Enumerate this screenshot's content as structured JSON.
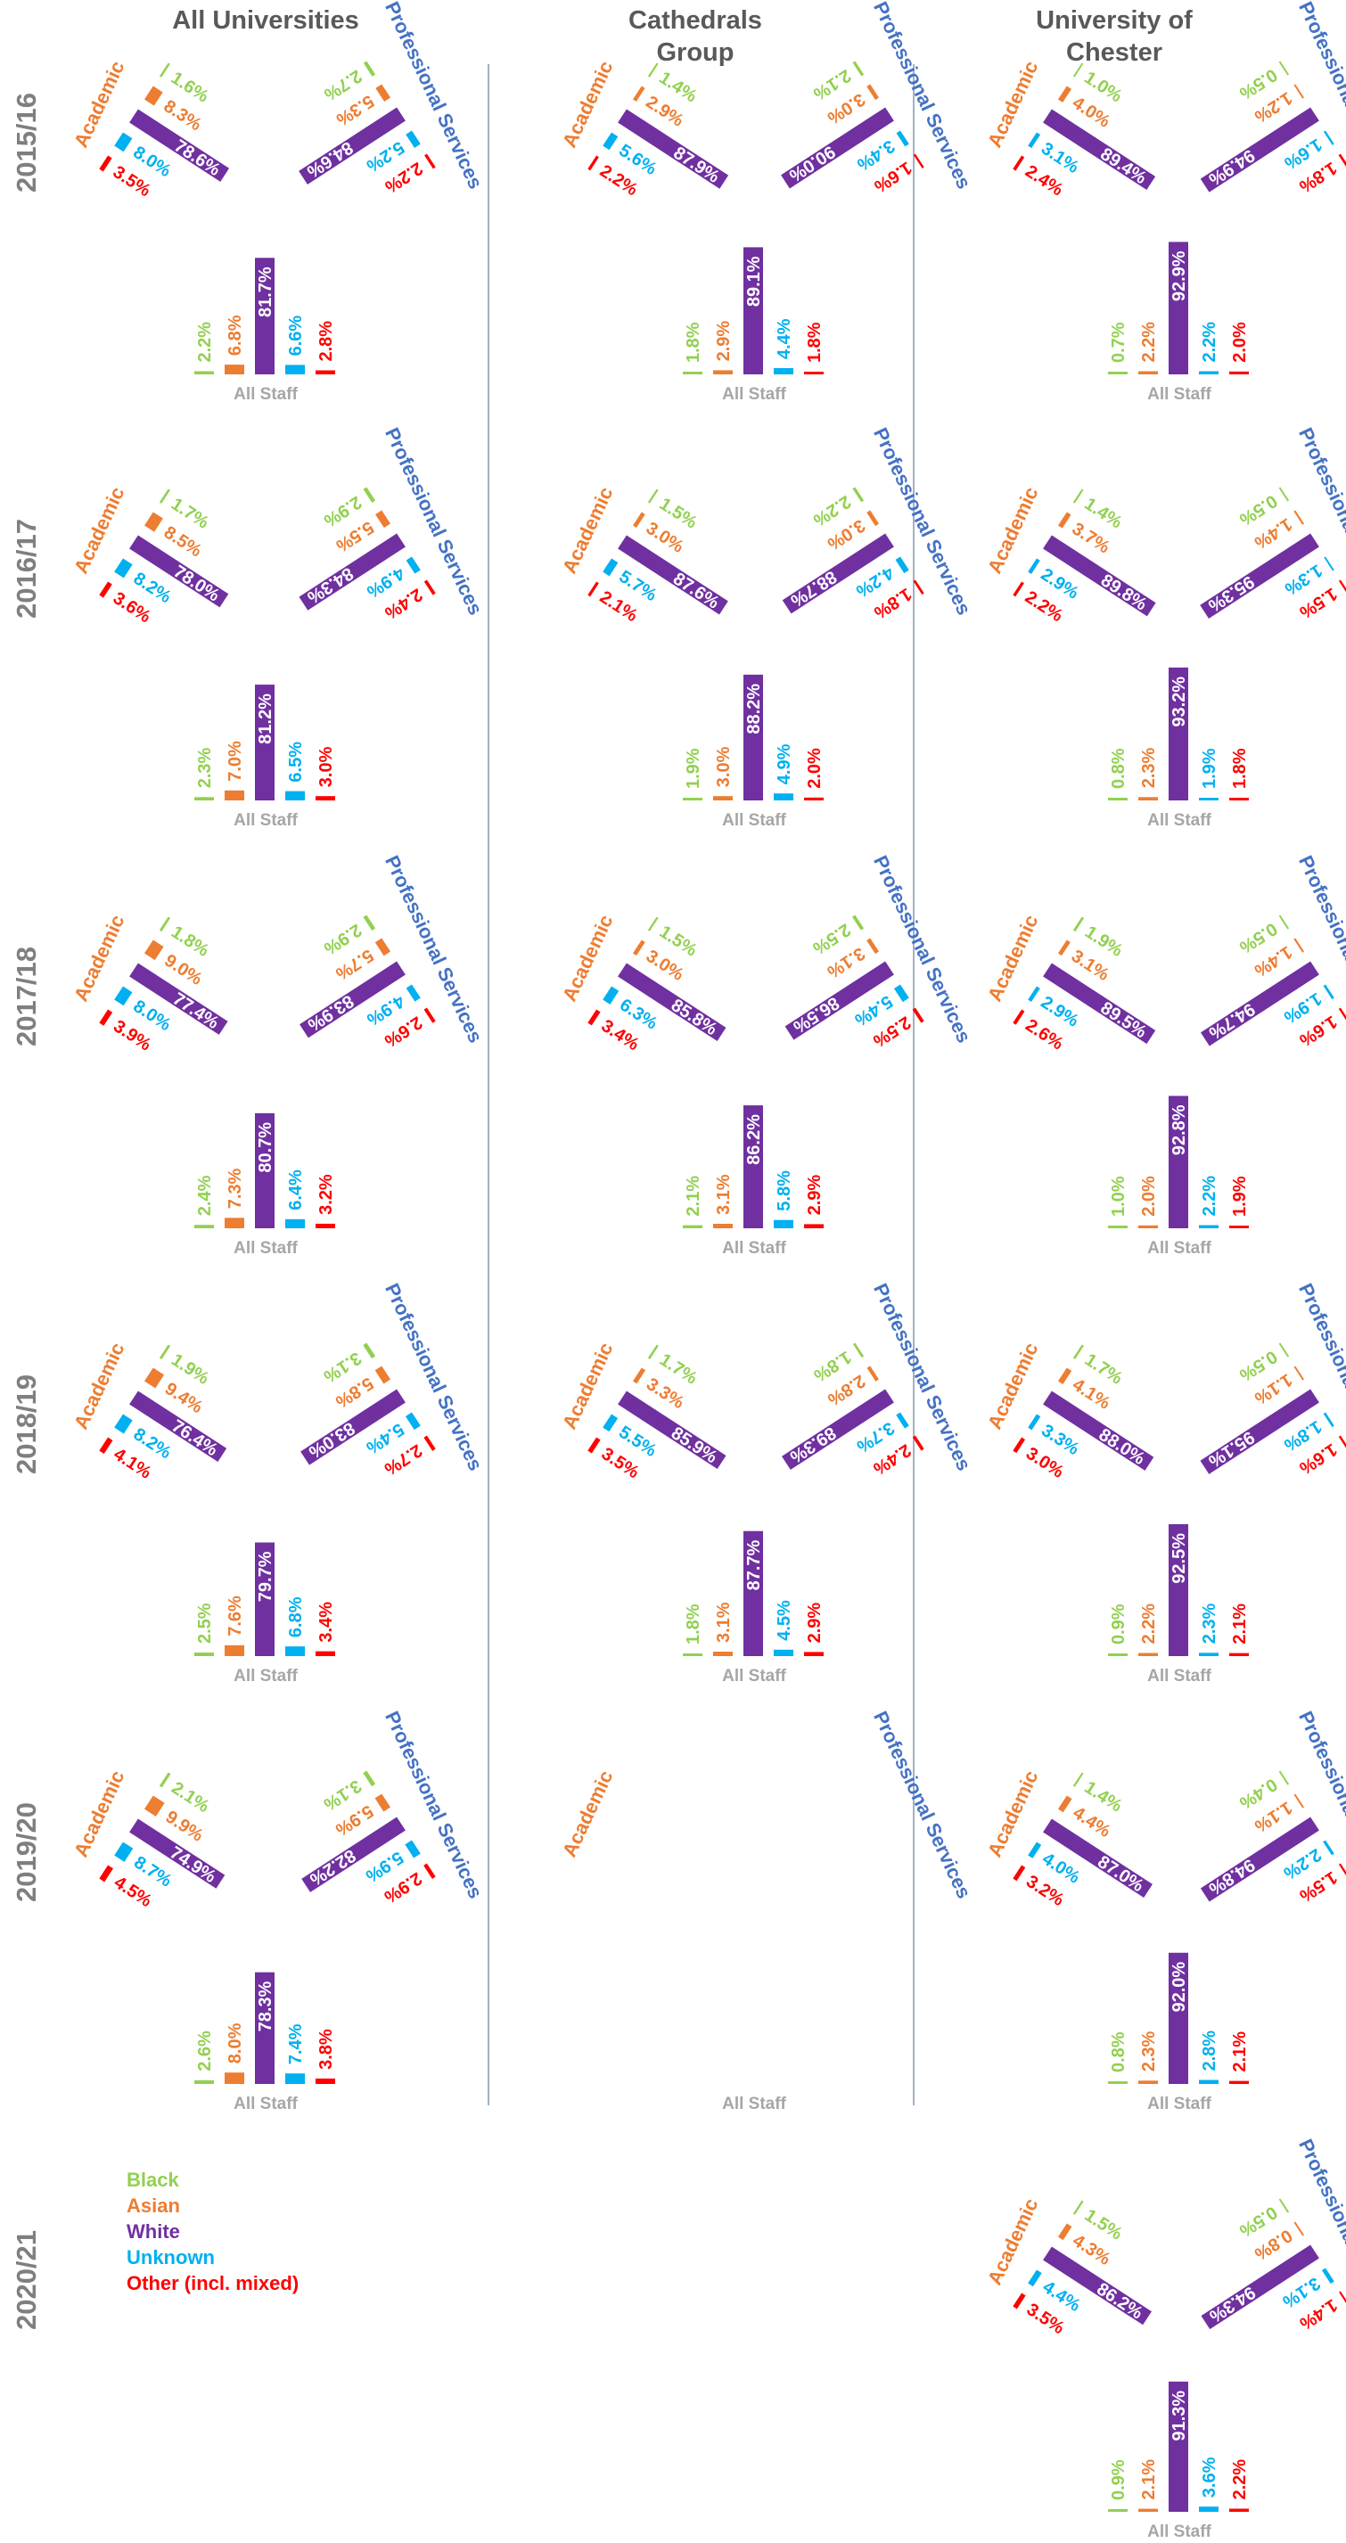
{
  "colors": {
    "Black": "#92d050",
    "Asian": "#ed7d31",
    "White": "#7030a0",
    "Unknown": "#00b0f0",
    "Other (incl. mixed)": "#ff0000",
    "label_academic": "#ed7d31",
    "label_prof": "#4472c4",
    "label_allstaff": "#a6a6a6",
    "divider": "#8497b0"
  },
  "chart_data": {
    "type": "bar",
    "columns": [
      "All Universities",
      "Cathedrals Group",
      "University of Chester"
    ],
    "column_titles": [
      [
        "All Universities"
      ],
      [
        "Cathedrals",
        "Group"
      ],
      [
        "University of",
        "Chester"
      ]
    ],
    "years": [
      "2015/16",
      "2016/17",
      "2017/18",
      "2018/19",
      "2019/20",
      "2020/21"
    ],
    "categories": [
      "Black",
      "Asian",
      "White",
      "Unknown",
      "Other (incl. mixed)"
    ],
    "group_labels": {
      "academic": "Academic",
      "prof": "Professional Services",
      "all": "All Staff"
    },
    "legend": [
      "Black",
      "Asian",
      "White",
      "Unknown",
      "Other (incl. mixed)"
    ],
    "data": {
      "All Universities": {
        "2015/16": {
          "academic": [
            1.6,
            8.3,
            78.6,
            8.0,
            3.5
          ],
          "prof": [
            2.7,
            5.3,
            84.6,
            5.2,
            2.2
          ],
          "all": [
            2.2,
            6.8,
            81.7,
            6.6,
            2.8
          ]
        },
        "2016/17": {
          "academic": [
            1.7,
            8.5,
            78.0,
            8.2,
            3.6
          ],
          "prof": [
            2.9,
            5.5,
            84.3,
            4.9,
            2.4
          ],
          "all": [
            2.3,
            7.0,
            81.2,
            6.5,
            3.0
          ]
        },
        "2017/18": {
          "academic": [
            1.8,
            9.0,
            77.4,
            8.0,
            3.9
          ],
          "prof": [
            2.9,
            5.7,
            83.9,
            4.9,
            2.6
          ],
          "all": [
            2.4,
            7.3,
            80.7,
            6.4,
            3.2
          ]
        },
        "2018/19": {
          "academic": [
            1.9,
            9.4,
            76.4,
            8.2,
            4.1
          ],
          "prof": [
            3.1,
            5.8,
            83.0,
            5.4,
            2.7
          ],
          "all": [
            2.5,
            7.6,
            79.7,
            6.8,
            3.4
          ]
        },
        "2019/20": {
          "academic": [
            2.1,
            9.9,
            74.9,
            8.7,
            4.5
          ],
          "prof": [
            3.1,
            5.9,
            82.2,
            5.9,
            2.9
          ],
          "all": [
            2.6,
            8.0,
            78.3,
            7.4,
            3.8
          ]
        }
      },
      "Cathedrals Group": {
        "2015/16": {
          "academic": [
            1.4,
            2.9,
            87.9,
            5.6,
            2.2
          ],
          "prof": [
            2.1,
            3.0,
            90.0,
            3.4,
            1.6
          ],
          "all": [
            1.8,
            2.9,
            89.1,
            4.4,
            1.8
          ]
        },
        "2016/17": {
          "academic": [
            1.5,
            3.0,
            87.6,
            5.7,
            2.1
          ],
          "prof": [
            2.2,
            3.0,
            88.7,
            4.2,
            1.8
          ],
          "all": [
            1.9,
            3.0,
            88.2,
            4.9,
            2.0
          ]
        },
        "2017/18": {
          "academic": [
            1.5,
            3.0,
            85.8,
            6.3,
            3.4
          ],
          "prof": [
            2.5,
            3.1,
            86.5,
            5.4,
            2.5
          ],
          "all": [
            2.1,
            3.1,
            86.2,
            5.8,
            2.9
          ]
        },
        "2018/19": {
          "academic": [
            1.7,
            3.3,
            85.9,
            5.5,
            3.5
          ],
          "prof": [
            1.8,
            2.8,
            89.3,
            3.7,
            2.4
          ],
          "all": [
            1.8,
            3.1,
            87.7,
            4.5,
            2.9
          ]
        },
        "2019/20": {
          "academic": null,
          "prof": null,
          "all": null
        }
      },
      "University of Chester": {
        "2015/16": {
          "academic": [
            1.0,
            4.0,
            89.4,
            3.1,
            2.4
          ],
          "prof": [
            0.5,
            1.2,
            94.9,
            1.6,
            1.8
          ],
          "all": [
            0.7,
            2.2,
            92.9,
            2.2,
            2.0
          ]
        },
        "2016/17": {
          "academic": [
            1.4,
            3.7,
            89.8,
            2.9,
            2.2
          ],
          "prof": [
            0.5,
            1.4,
            95.3,
            1.3,
            1.5
          ],
          "all": [
            0.8,
            2.3,
            93.2,
            1.9,
            1.8
          ]
        },
        "2017/18": {
          "academic": [
            1.9,
            3.1,
            89.5,
            2.9,
            2.6
          ],
          "prof": [
            0.5,
            1.4,
            94.7,
            1.9,
            1.6
          ],
          "all": [
            1.0,
            2.0,
            92.8,
            2.2,
            1.9
          ]
        },
        "2018/19": {
          "academic": [
            1.7,
            4.1,
            88.0,
            3.3,
            3.0
          ],
          "prof": [
            0.5,
            1.1,
            95.1,
            1.8,
            1.6
          ],
          "all": [
            0.9,
            2.2,
            92.5,
            2.3,
            2.1
          ]
        },
        "2019/20": {
          "academic": [
            1.4,
            4.4,
            87.0,
            4.0,
            3.2
          ],
          "prof": [
            0.4,
            1.1,
            94.8,
            2.2,
            1.5
          ],
          "all": [
            0.8,
            2.3,
            92.0,
            2.8,
            2.1
          ]
        },
        "2020/21": {
          "academic": [
            1.5,
            4.3,
            86.2,
            4.4,
            3.5
          ],
          "prof": [
            0.5,
            0.8,
            94.3,
            3.1,
            1.4
          ],
          "all": [
            0.9,
            2.1,
            91.3,
            3.6,
            2.2
          ]
        }
      }
    }
  }
}
